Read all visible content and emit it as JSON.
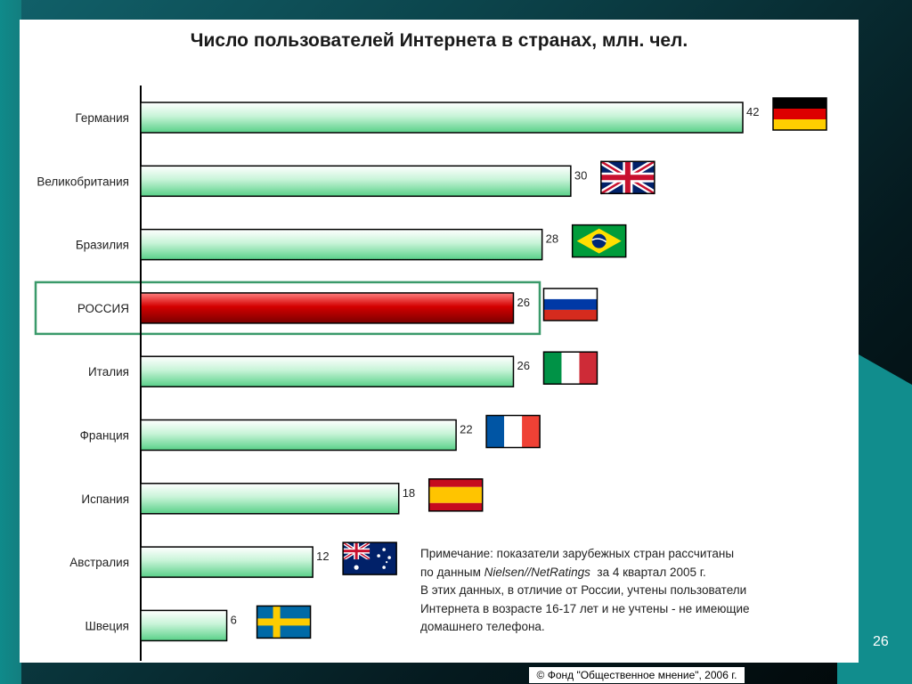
{
  "chart_data": {
    "type": "bar",
    "orientation": "horizontal",
    "title": "Число пользователей Интернета в странах, млн. чел.",
    "categories": [
      "Германия",
      "Великобритания",
      "Бразилия",
      "РОССИЯ",
      "Италия",
      "Франция",
      "Испания",
      "Австралия",
      "Швеция"
    ],
    "values": [
      42,
      30,
      28,
      26,
      26,
      22,
      18,
      12,
      6
    ],
    "highlight": "РОССИЯ",
    "colors": {
      "bar_normal": "#7fe0a8",
      "bar_highlight": "#c00000",
      "highlight_box": "#3a9a6a"
    },
    "flags": [
      "germany-flag",
      "uk-flag",
      "brazil-flag",
      "russia-flag",
      "italy-flag",
      "france-flag",
      "spain-flag",
      "australia-flag",
      "sweden-flag"
    ],
    "xlim": [
      0,
      42
    ]
  },
  "note": {
    "line1": "Примечание: показатели зарубежных стран рассчитаны",
    "line2_prefix": "по данным ",
    "line2_source": "Nielsen//NetRatings",
    "line2_suffix": "  за 4 квартал 2005 г.",
    "line3": "В этих данных, в отличие от России, учтены пользователи",
    "line4": "Интернета в возрасте 16-17 лет и не учтены - не имеющие",
    "line5": "домашнего телефона."
  },
  "page_number": "26",
  "copyright": "© Фонд \"Общественное мнение\", 2006 г."
}
